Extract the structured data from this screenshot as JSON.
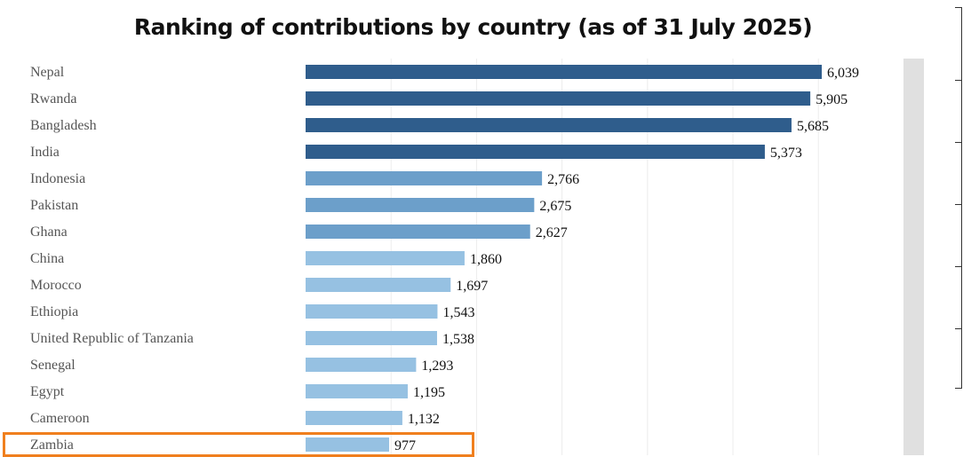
{
  "chart_data": {
    "type": "bar",
    "orientation": "horizontal",
    "title": "Ranking of contributions by country (as of 31 July 2025)",
    "categories": [
      "Nepal",
      "Rwanda",
      "Bangladesh",
      "India",
      "Indonesia",
      "Pakistan",
      "Ghana",
      "China",
      "Morocco",
      "Ethiopia",
      "United Republic of Tanzania",
      "Senegal",
      "Egypt",
      "Cameroon",
      "Zambia"
    ],
    "values": [
      6039,
      5905,
      5685,
      5373,
      2766,
      2675,
      2627,
      1860,
      1697,
      1543,
      1538,
      1293,
      1195,
      1132,
      977
    ],
    "value_labels": [
      "6,039",
      "5,905",
      "5,685",
      "5,373",
      "2,766",
      "2,675",
      "2,627",
      "1,860",
      "1,697",
      "1,543",
      "1,538",
      "1,293",
      "1,195",
      "1,132",
      "977"
    ],
    "xlim": [
      0,
      7000
    ],
    "grid": true,
    "highlighted_category": "Zambia",
    "colors": {
      "dark": "#2f5d8c",
      "medium": "#6c9fca",
      "light": "#96c1e2",
      "highlight_border": "#f07f1e",
      "gridline": "#ececec"
    }
  }
}
